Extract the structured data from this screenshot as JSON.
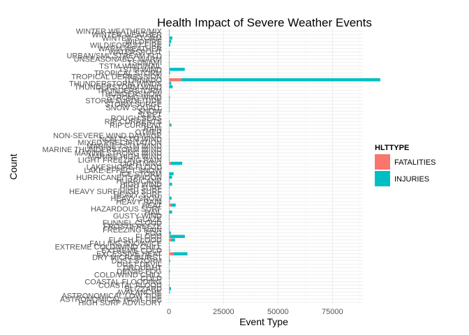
{
  "chart_data": {
    "type": "bar",
    "orientation": "horizontal",
    "stacked": true,
    "title": "Health Impact of Severe Weather Events",
    "xlabel": "Event Type",
    "ylabel": "Count",
    "xlim": [
      -2000,
      89000
    ],
    "xticks": [
      {
        "value": 0,
        "label": "0"
      },
      {
        "value": 25000,
        "label": "25000"
      },
      {
        "value": 50000,
        "label": "50000"
      },
      {
        "value": 75000,
        "label": "75000"
      }
    ],
    "grid": true,
    "legend": {
      "title": "HLTTYPE",
      "position": "right"
    },
    "categories": [
      "HIGH SURF ADVISORY",
      "ASTRONOMICAL HIGH TIDE",
      "ASTRONOMICAL LOW TIDE",
      "AVALANCHE",
      "BLIZZARD",
      "COASTAL FLOOD",
      "COASTAL FLOODING",
      "COLD",
      "COLD/WIND CHILL",
      "DENSE FOG",
      "DROUGHT",
      "DUST DEVIL",
      "DUST STORM",
      "DRY MICROBURST",
      "EXCESSIVE HEAT",
      "EXTREME COLD",
      "EXTREME COLD/WIND CHILL",
      "FALLING SNOW/ICE",
      "FLASH FLOOD",
      "FLOOD",
      "FOG",
      "FREEZING RAIN",
      "FROST/FREEZE",
      "FUNNEL CLOUD",
      "GLAZE",
      "GUSTY WIND",
      "HAIL",
      "HAZARDOUS SURF",
      "HEAT",
      "HEAVY RAIN",
      "HEAVY SNOW",
      "HEAVY SURF",
      "HEAVY SURF/HIGH SURF",
      "HIGH SURF",
      "HIGH WIND",
      "HURRICANE",
      "HURRICANE/TYPHOON",
      "ICE STORM",
      "LAKE-EFFECT SNOW",
      "LAKESHORE FLOOD",
      "LIGHTNING",
      "LIGHT FREEZING RAIN",
      "MARINE HIGH WIND",
      "MARINE STRONG WIND",
      "MARINE THUNDERSTORM WIND",
      "MARINE TSTM WIND",
      "MIXED PRECIPITATION",
      "NON TSTM WIND",
      "NON-SEVERE WIND DAMAGE",
      "OTHER",
      "RAIN",
      "RIP CURRENT",
      "RIP CURRENTS",
      "ROUGH SEAS",
      "SLEET",
      "SNOW",
      "SNOW SQUALL",
      "STORM SURGE",
      "STORM SURGE/TIDE",
      "STRONG WIND",
      "THUNDERSNOW",
      "THUNDERSTORM",
      "THUNDERSTORM WIND",
      "THUNDERSTORM WINDS",
      "TORNADO",
      "TROPICAL DEPRESSION",
      "TROPICAL STORM",
      "TSTM WIND",
      "TSTM WIND/HAIL",
      "TSUNAMI",
      "UNSEASONABLY WARM",
      "URBAN/SML STREAM FLD",
      "WATERSPOUT",
      "WARM WEATHER",
      "WILD/FOREST FIRE",
      "WILDFIRE",
      "WINTER STORM",
      "WINTER WEATHER",
      "WINTER WEATHER/MIX"
    ],
    "series": [
      {
        "name": "FATALITIES",
        "color": "#F8766D",
        "values": [
          0,
          0,
          0,
          224,
          101,
          3,
          1,
          35,
          95,
          18,
          0,
          2,
          22,
          3,
          1903,
          160,
          125,
          2,
          978,
          470,
          62,
          2,
          1,
          0,
          1,
          10,
          15,
          2,
          937,
          98,
          127,
          1,
          0,
          101,
          248,
          61,
          64,
          89,
          0,
          0,
          817,
          1,
          1,
          14,
          10,
          1,
          2,
          2,
          0,
          1,
          1,
          577,
          2,
          0,
          0,
          2,
          2,
          13,
          11,
          103,
          1,
          2,
          133,
          64,
          5633,
          8,
          66,
          241,
          5,
          33,
          0,
          28,
          3,
          0,
          12,
          90,
          206,
          33,
          28
        ]
      },
      {
        "name": "INJURIES",
        "color": "#00BFC4",
        "values": [
          0,
          0,
          0,
          170,
          805,
          2,
          0,
          48,
          12,
          342,
          4,
          43,
          440,
          28,
          6525,
          231,
          24,
          1,
          1777,
          6789,
          734,
          23,
          3,
          3,
          212,
          1,
          1361,
          0,
          2100,
          251,
          1021,
          40,
          48,
          152,
          1137,
          46,
          1275,
          1975,
          0,
          0,
          5230,
          2,
          1,
          22,
          26,
          8,
          2,
          4,
          2,
          4,
          0,
          529,
          20,
          0,
          0,
          20,
          2,
          38,
          5,
          280,
          0,
          0,
          1488,
          908,
          91346,
          0,
          383,
          6957,
          95,
          129,
          17,
          79,
          29,
          0,
          545,
          911,
          1321,
          72,
          68
        ]
      }
    ]
  }
}
